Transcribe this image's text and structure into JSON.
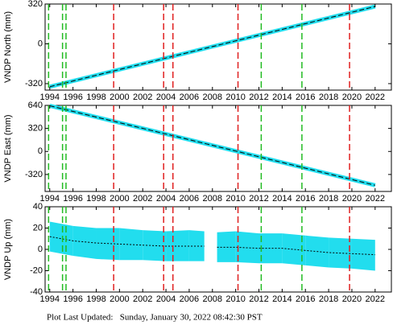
{
  "chart_data": [
    {
      "type": "line",
      "ylabel": "VNDP North (mm)",
      "xlim": [
        1993.6,
        2023.4
      ],
      "ylim": [
        -372,
        320
      ],
      "xticks": [
        1994,
        1996,
        1998,
        2000,
        2002,
        2004,
        2006,
        2008,
        2010,
        2012,
        2014,
        2016,
        2018,
        2020,
        2022
      ],
      "yticks": [
        -320,
        0,
        320
      ],
      "green_lines": [
        1993.9,
        1995.1,
        1995.4,
        2012.2,
        2015.7
      ],
      "green_color": "#22bb22",
      "red_lines": [
        1999.5,
        2003.8,
        2004.6,
        2010.2,
        2019.8
      ],
      "red_color": "#e02020",
      "series": [
        {
          "color": "#22ddee",
          "x": [
            1994,
            2008,
            2022
          ],
          "values": [
            -345,
            -22,
            300
          ]
        }
      ]
    },
    {
      "type": "line",
      "ylabel": "VNDP East (mm)",
      "xlim": [
        1993.6,
        2023.4
      ],
      "ylim": [
        -556,
        640
      ],
      "xticks": [
        1994,
        1996,
        1998,
        2000,
        2002,
        2004,
        2006,
        2008,
        2010,
        2012,
        2014,
        2016,
        2018,
        2020,
        2022
      ],
      "yticks": [
        -320,
        0,
        320,
        640
      ],
      "green_lines": [
        1993.9,
        1995.1,
        1995.4,
        2012.2,
        2015.7
      ],
      "green_color": "#22bb22",
      "red_lines": [
        1999.5,
        2003.8,
        2004.6,
        2010.2,
        2019.8
      ],
      "red_color": "#e02020",
      "series": [
        {
          "color": "#22ddee",
          "x": [
            1994,
            2008,
            2022
          ],
          "values": [
            635,
            85,
            -470
          ]
        }
      ]
    },
    {
      "type": "band",
      "ylabel": "VNDP Up (mm)",
      "xlim": [
        1993.6,
        2023.4
      ],
      "ylim": [
        -40,
        40
      ],
      "xticks": [
        1994,
        1996,
        1998,
        2000,
        2002,
        2004,
        2006,
        2008,
        2010,
        2012,
        2014,
        2016,
        2018,
        2020,
        2022
      ],
      "yticks": [
        -40,
        -20,
        0,
        20,
        40
      ],
      "green_lines": [
        1993.9,
        1995.1,
        1995.4,
        2012.2,
        2015.7
      ],
      "green_color": "#22bb22",
      "red_lines": [
        1999.5,
        2003.8,
        2004.6,
        2010.2,
        2019.8
      ],
      "red_color": "#e02020",
      "x": [
        1994,
        1996,
        1998,
        2000,
        2002,
        2004,
        2006,
        2007.3,
        2008,
        2008.4,
        2010,
        2012,
        2014,
        2016,
        2018,
        2020,
        2022
      ],
      "upper": [
        26,
        22,
        20,
        20,
        18,
        17,
        18,
        17,
        null,
        16,
        17,
        15,
        15,
        13,
        11,
        10,
        9
      ],
      "lower": [
        -2,
        -6,
        -9,
        -10,
        -10,
        -11,
        -11,
        -11,
        null,
        -12,
        -12,
        -13,
        -13,
        -15,
        -17,
        -18,
        -20
      ],
      "mean": [
        12,
        8,
        6,
        5,
        4,
        3,
        3,
        3,
        null,
        2,
        2,
        1,
        1,
        -1,
        -3,
        -4,
        -5
      ],
      "band_color": "#22ddee",
      "mean_color": "#000000"
    }
  ],
  "footer": "Plot Last Updated:   Sunday, January 30, 2022 08:42:30 PST"
}
